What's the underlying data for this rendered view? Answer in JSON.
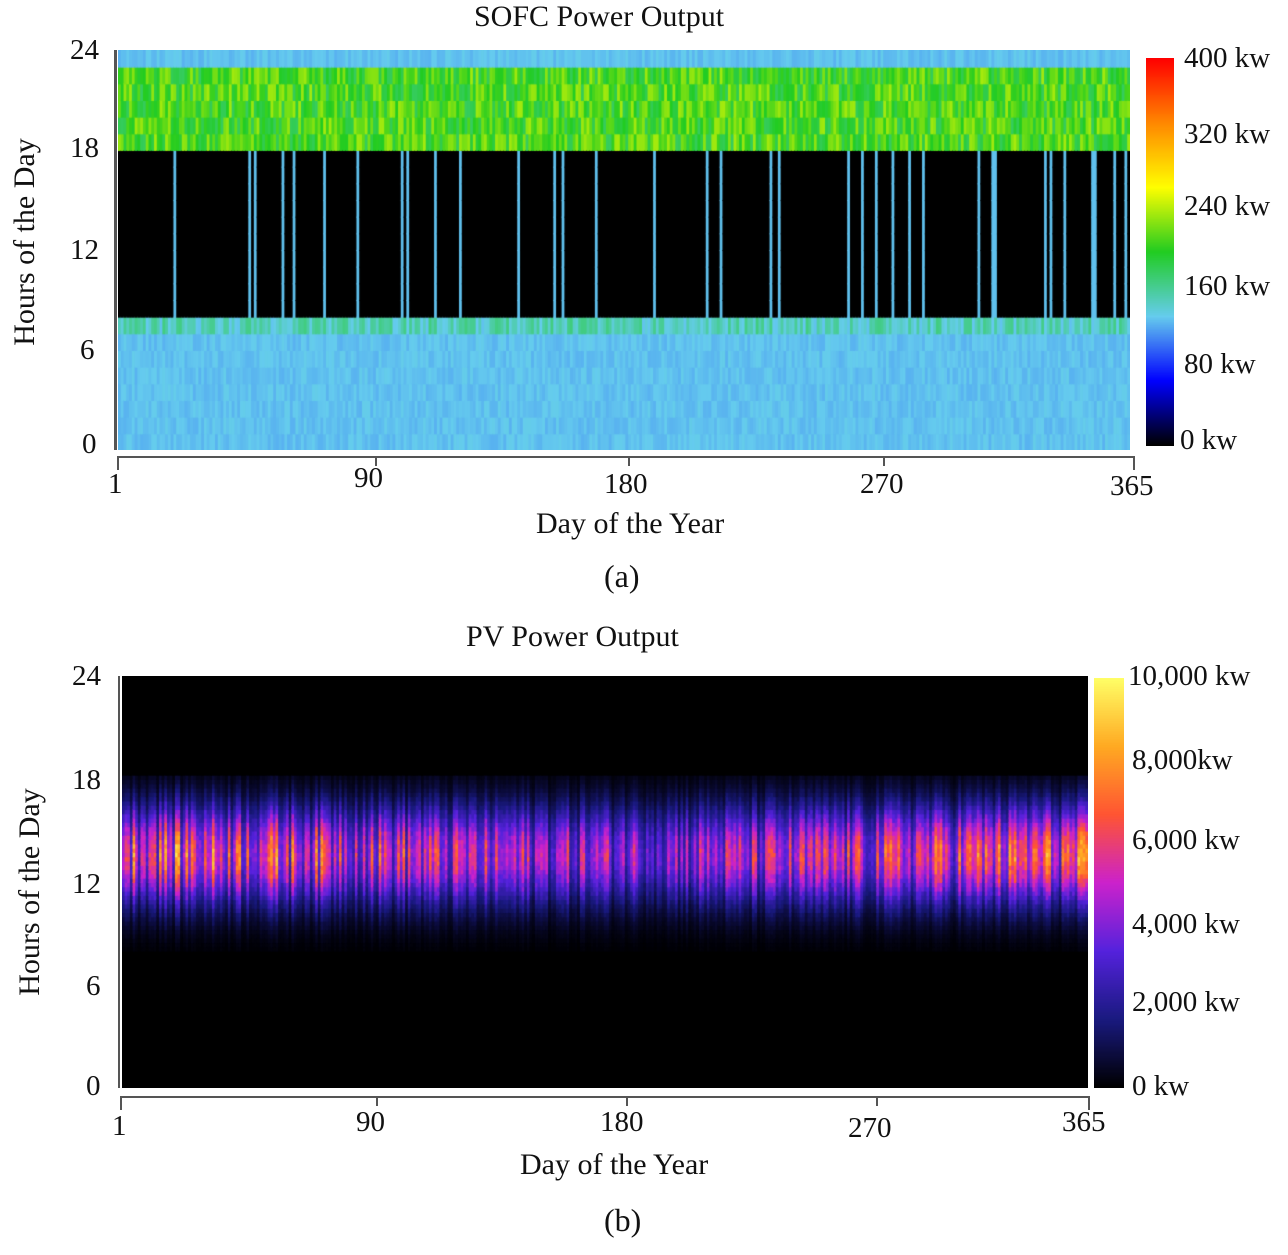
{
  "chart_data": [
    {
      "type": "heatmap",
      "title": "SOFC Power Output",
      "xlabel": "Day of the Year",
      "ylabel": "Hours of the Day",
      "x_ticks": [
        "1",
        "90",
        "180",
        "270",
        "365"
      ],
      "y_ticks": [
        "0",
        "6",
        "12",
        "18",
        "24"
      ],
      "xlim": [
        1,
        365
      ],
      "ylim": [
        0,
        24
      ],
      "colorbar": {
        "ticks": [
          "0 kw",
          "80 kw",
          "160 kw",
          "240 kw",
          "320 kw",
          "400 kw"
        ],
        "range": [
          0,
          400
        ],
        "colors": [
          "#000000",
          "#0000ff",
          "#66ccee",
          "#22cc22",
          "#ffff00",
          "#ff8800",
          "#ff0000"
        ]
      },
      "pattern": {
        "night_value_kw": 130,
        "evening_peak_hours": [
          18,
          23
        ],
        "evening_value_kw": 210,
        "off_hours": [
          8,
          18
        ],
        "off_value_kw": 0
      },
      "subplot_label": "(a)"
    },
    {
      "type": "heatmap",
      "title": "PV Power Output",
      "xlabel": "Day of the Year",
      "ylabel": "Hours of the Day",
      "x_ticks": [
        "1",
        "90",
        "180",
        "270",
        "365"
      ],
      "y_ticks": [
        "0",
        "6",
        "12",
        "18",
        "24"
      ],
      "xlim": [
        1,
        365
      ],
      "ylim": [
        0,
        24
      ],
      "colorbar": {
        "ticks": [
          "0 kw",
          "2,000 kw",
          "4,000 kw",
          "6,000 kw",
          "8,000kw",
          "10,000 kw"
        ],
        "range": [
          0,
          10000
        ],
        "colors": [
          "#000000",
          "#1a1a80",
          "#5522dd",
          "#cc22cc",
          "#ff5533",
          "#ffaa22",
          "#ffff66"
        ]
      },
      "pattern": {
        "daylight_hours": [
          8,
          18
        ],
        "peak_hour": 13.5,
        "peak_value_kw": 8000
      },
      "subplot_label": "(b)"
    }
  ]
}
